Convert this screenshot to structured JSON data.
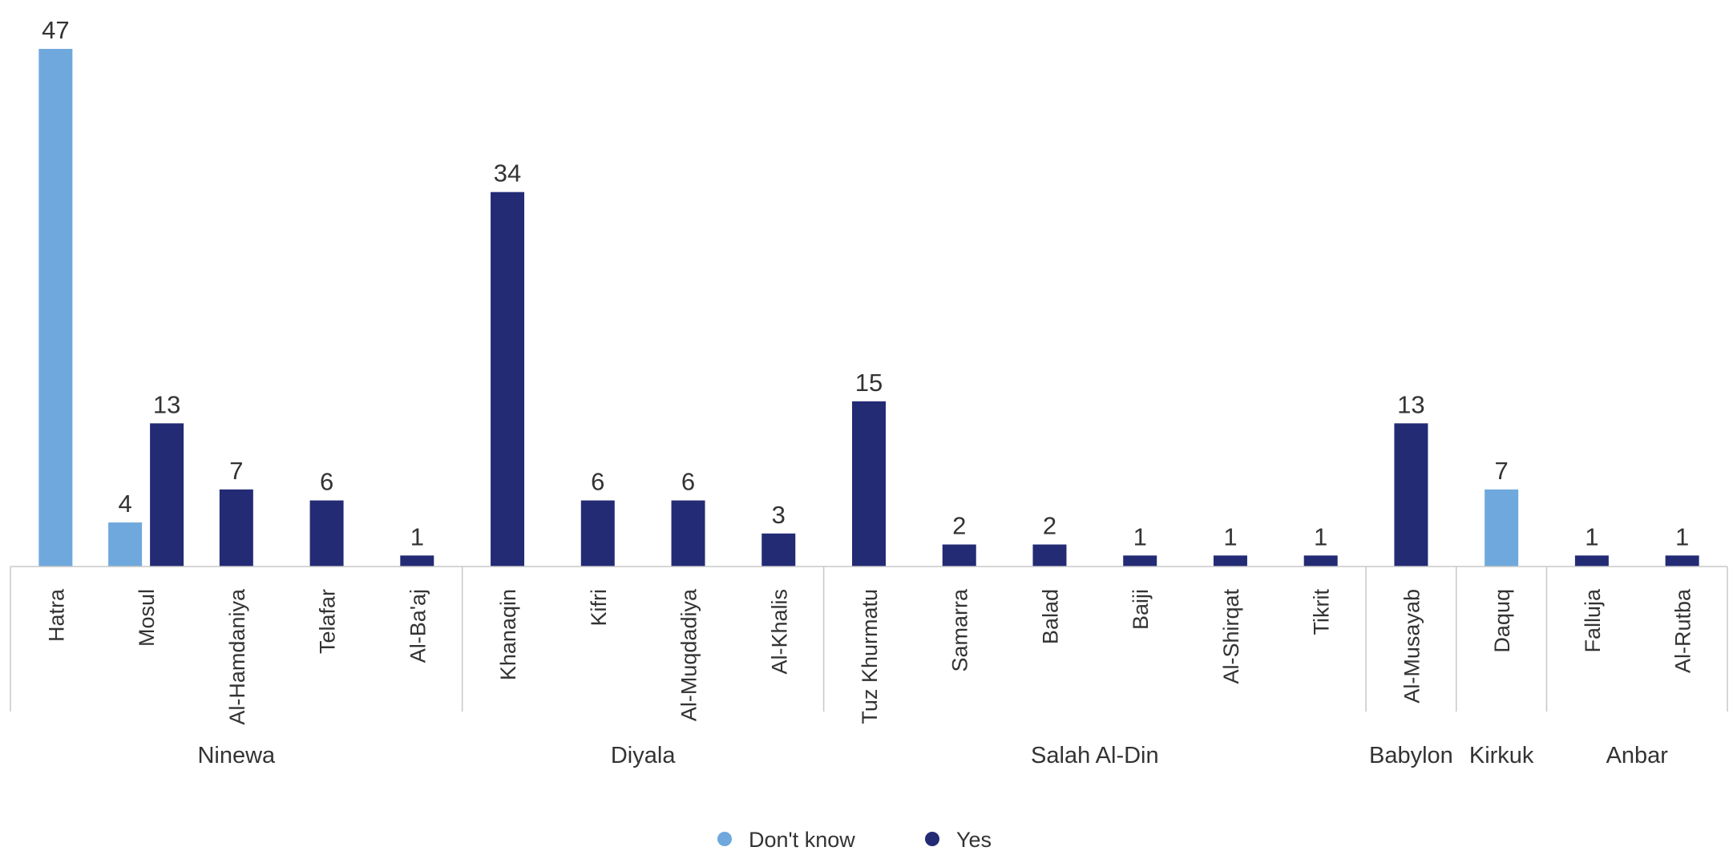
{
  "colors": {
    "dont_know": "#6fa8dc",
    "yes": "#232b75",
    "axis": "#c8c8c8",
    "text": "#333333"
  },
  "chart_data": {
    "type": "bar",
    "ylim": [
      0,
      47
    ],
    "grid": false,
    "legend_position": "bottom",
    "series": [
      {
        "name": "Don't know",
        "color_key": "dont_know"
      },
      {
        "name": "Yes",
        "color_key": "yes"
      }
    ],
    "groups": [
      {
        "name": "Ninewa",
        "categories": [
          {
            "label": "Hatra",
            "dont_know": 47,
            "yes": null
          },
          {
            "label": "Mosul",
            "dont_know": 4,
            "yes": 13
          },
          {
            "label": "Al-Hamdaniya",
            "dont_know": null,
            "yes": 7
          },
          {
            "label": "Telafar",
            "dont_know": null,
            "yes": 6
          },
          {
            "label": "Al-Ba'aj",
            "dont_know": null,
            "yes": 1
          }
        ]
      },
      {
        "name": "Diyala",
        "categories": [
          {
            "label": "Khanaqin",
            "dont_know": null,
            "yes": 34
          },
          {
            "label": "Kifri",
            "dont_know": null,
            "yes": 6
          },
          {
            "label": "Al-Muqdadiya",
            "dont_know": null,
            "yes": 6
          },
          {
            "label": "Al-Khalis",
            "dont_know": null,
            "yes": 3
          }
        ]
      },
      {
        "name": "Salah Al-Din",
        "categories": [
          {
            "label": "Tuz Khurmatu",
            "dont_know": null,
            "yes": 15
          },
          {
            "label": "Samarra",
            "dont_know": null,
            "yes": 2
          },
          {
            "label": "Balad",
            "dont_know": null,
            "yes": 2
          },
          {
            "label": "Baiji",
            "dont_know": null,
            "yes": 1
          },
          {
            "label": "Al-Shirqat",
            "dont_know": null,
            "yes": 1
          },
          {
            "label": "Tikrit",
            "dont_know": null,
            "yes": 1
          }
        ]
      },
      {
        "name": "Babylon",
        "categories": [
          {
            "label": "Al-Musayab",
            "dont_know": null,
            "yes": 13
          }
        ]
      },
      {
        "name": "Kirkuk",
        "categories": [
          {
            "label": "Daquq",
            "dont_know": 7,
            "yes": null
          }
        ]
      },
      {
        "name": "Anbar",
        "categories": [
          {
            "label": "Falluja",
            "dont_know": null,
            "yes": 1
          },
          {
            "label": "Al-Rutba",
            "dont_know": null,
            "yes": 1
          }
        ]
      }
    ]
  }
}
